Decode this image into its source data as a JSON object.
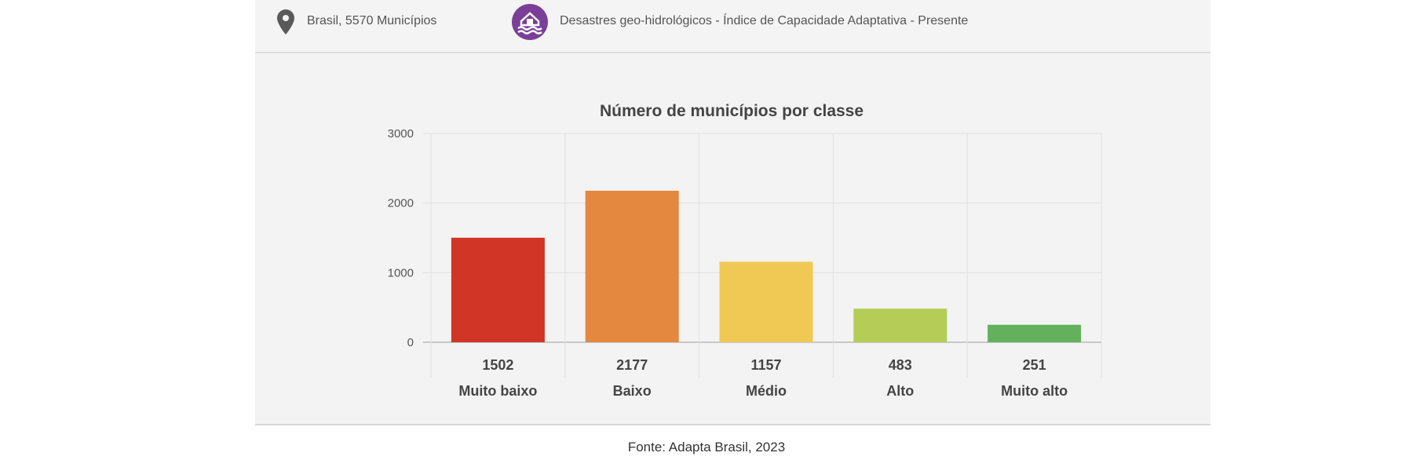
{
  "header": {
    "location": "Brasil, 5570 Municípios",
    "indicator": "Desastres geo-hidrológicos - Índice de Capacidade Adaptativa - Presente",
    "icons": [
      "map-pin-icon",
      "flood-house-icon"
    ]
  },
  "chart_data": {
    "type": "bar",
    "title": "Número de municípios por classe",
    "categories": [
      "Muito baixo",
      "Baixo",
      "Médio",
      "Alto",
      "Muito alto"
    ],
    "values": [
      1502,
      2177,
      1157,
      483,
      251
    ],
    "value_labels": [
      "1502",
      "2177",
      "1157",
      "483",
      "251"
    ],
    "colors": [
      "#d03526",
      "#e4873f",
      "#f0c955",
      "#b5cc56",
      "#63b15c"
    ],
    "xlabel": "",
    "ylabel": "",
    "ylim": [
      0,
      3000
    ],
    "yticks": [
      "0",
      "1000",
      "2000",
      "3000"
    ],
    "grid": true,
    "legend": "none"
  },
  "footer": {
    "source": "Fonte: Adapta Brasil, 2023"
  }
}
